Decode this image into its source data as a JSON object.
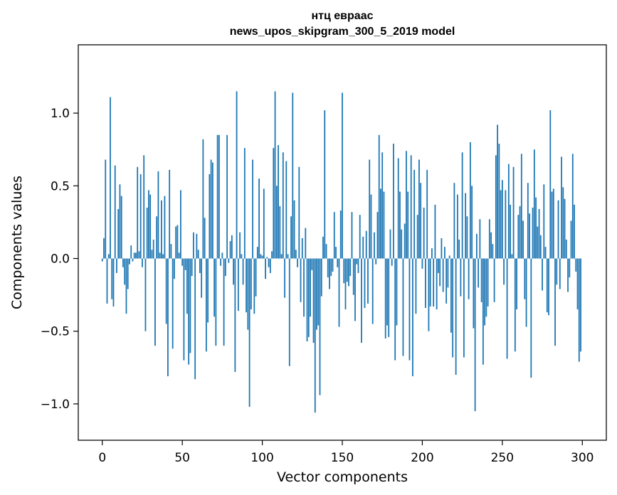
{
  "chart_data": {
    "type": "bar",
    "title_line1": "нтц евраас",
    "title_line2": "news_upos_skipgram_300_5_2019 model",
    "xlabel": "Vector components",
    "ylabel": "Components values",
    "xlim": [
      -15,
      315
    ],
    "ylim": [
      -1.25,
      1.47
    ],
    "xticks": [
      0,
      50,
      100,
      150,
      200,
      250,
      300
    ],
    "xtick_labels": [
      "0",
      "50",
      "100",
      "150",
      "200",
      "250",
      "300"
    ],
    "yticks": [
      -1.0,
      -0.5,
      0.0,
      0.5,
      1.0
    ],
    "ytick_labels": [
      "−1.0",
      "−0.5",
      "0.0",
      "0.5",
      "1.0"
    ],
    "grid": false,
    "bar_color": "#1f77b4",
    "values": [
      -0.02,
      0.14,
      0.68,
      -0.31,
      0.03,
      1.11,
      -0.28,
      -0.33,
      0.64,
      -0.1,
      0.34,
      0.51,
      0.43,
      -0.06,
      -0.18,
      -0.38,
      -0.21,
      -0.04,
      0.09,
      -0.02,
      0.04,
      0.04,
      0.63,
      0.05,
      0.58,
      -0.06,
      0.71,
      -0.5,
      0.35,
      0.47,
      0.44,
      0.06,
      0.13,
      -0.6,
      0.29,
      0.6,
      0.04,
      0.4,
      0.03,
      0.43,
      -0.45,
      -0.81,
      0.61,
      0.1,
      -0.62,
      -0.14,
      0.22,
      0.23,
      0.04,
      0.47,
      -0.05,
      -0.7,
      -0.08,
      -0.38,
      -0.73,
      -0.65,
      -0.12,
      0.18,
      -0.83,
      0.17,
      0.06,
      -0.1,
      -0.27,
      0.82,
      0.28,
      -0.64,
      -0.44,
      0.58,
      0.68,
      0.66,
      -0.4,
      -0.6,
      0.85,
      0.85,
      -0.05,
      0.04,
      -0.6,
      -0.12,
      0.85,
      -0.03,
      0.12,
      0.16,
      -0.18,
      -0.78,
      1.15,
      -0.36,
      0.18,
      0.03,
      -0.18,
      0.76,
      -0.37,
      -0.49,
      -1.02,
      -0.35,
      0.68,
      -0.38,
      -0.26,
      0.08,
      0.55,
      0.03,
      0.02,
      0.48,
      -0.14,
      0.01,
      -0.06,
      -0.1,
      0.05,
      0.76,
      1.15,
      0.5,
      0.78,
      0.36,
      0.03,
      0.73,
      -0.27,
      0.67,
      0.03,
      -0.74,
      0.29,
      1.14,
      0.4,
      0.06,
      -0.06,
      0.63,
      -0.3,
      0.14,
      -0.4,
      0.21,
      -0.57,
      -0.54,
      -0.4,
      -0.08,
      -0.58,
      -1.06,
      -0.49,
      -0.46,
      -0.94,
      -0.26,
      0.15,
      1.02,
      0.1,
      -0.13,
      -0.21,
      -0.12,
      -0.09,
      0.32,
      0.08,
      -0.06,
      -0.47,
      0.33,
      1.14,
      -0.17,
      -0.35,
      -0.16,
      -0.19,
      -0.12,
      0.32,
      -0.25,
      -0.43,
      -0.04,
      -0.1,
      0.3,
      -0.58,
      0.15,
      -0.34,
      0.19,
      -0.31,
      0.68,
      0.44,
      -0.45,
      0.18,
      -0.04,
      0.32,
      0.85,
      0.48,
      0.73,
      0.46,
      -0.55,
      -0.46,
      -0.54,
      0.2,
      -0.05,
      0.79,
      -0.7,
      -0.46,
      0.69,
      0.46,
      0.2,
      -0.67,
      0.24,
      0.74,
      0.46,
      -0.7,
      0.71,
      -0.81,
      0.61,
      -0.38,
      0.3,
      0.68,
      0.52,
      -0.07,
      0.35,
      -0.34,
      0.61,
      -0.5,
      -0.33,
      0.07,
      -0.33,
      0.37,
      -0.35,
      -0.1,
      -0.19,
      0.14,
      -0.23,
      0.08,
      -0.31,
      -0.2,
      0.02,
      -0.51,
      -0.68,
      0.52,
      -0.8,
      0.44,
      0.13,
      -0.26,
      0.73,
      -0.68,
      0.45,
      0.29,
      -0.28,
      0.8,
      0.5,
      -0.48,
      -1.05,
      0.17,
      -0.2,
      0.27,
      -0.3,
      -0.73,
      -0.46,
      -0.4,
      -0.33,
      0.27,
      0.18,
      0.1,
      -0.3,
      0.71,
      0.92,
      0.79,
      0.47,
      0.54,
      -0.18,
      0.47,
      -0.69,
      0.65,
      0.37,
      0.03,
      0.63,
      -0.64,
      -0.35,
      0.3,
      0.36,
      0.72,
      0.26,
      -0.28,
      -0.47,
      0.52,
      0.31,
      -0.82,
      0.35,
      0.75,
      0.42,
      0.22,
      0.34,
      0.16,
      -0.22,
      0.51,
      0.08,
      -0.37,
      -0.39,
      1.02,
      0.46,
      0.48,
      -0.6,
      -0.18,
      0.4,
      -0.21,
      0.7,
      0.49,
      0.41,
      0.13,
      -0.23,
      -0.13,
      0.26,
      0.72,
      0.37,
      -0.09,
      -0.35,
      -0.71,
      -0.64
    ]
  }
}
